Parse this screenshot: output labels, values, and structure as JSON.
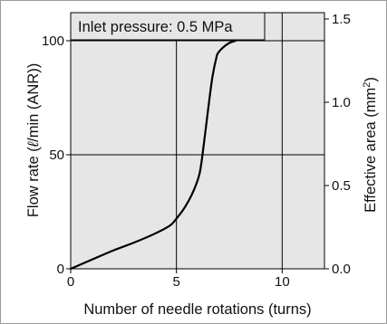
{
  "chart_data": {
    "type": "line",
    "annotation": "Inlet pressure: 0.5 MPa",
    "xlabel": "Number of needle rotations (turns)",
    "ylabel_left_prefix": "Flow rate (",
    "ylabel_left_unit_symbol": "ℓ",
    "ylabel_left_suffix": "/min (ANR))",
    "ylabel_right_prefix": "Effective area (mm",
    "ylabel_right_sup": "2",
    "ylabel_right_suffix": ")",
    "xlim": [
      0,
      12
    ],
    "ylim_left": [
      0,
      100
    ],
    "ylim_right": [
      0,
      1.5
    ],
    "x_ticks": [
      0,
      5,
      10
    ],
    "x_tick_labels": [
      "0",
      "5",
      "10"
    ],
    "y_left_ticks": [
      0,
      50,
      100
    ],
    "y_left_tick_labels": [
      "0",
      "50",
      "100"
    ],
    "y_right_ticks": [
      0,
      0.5,
      1.0,
      1.5
    ],
    "y_right_tick_labels": [
      "0.0",
      "0.5",
      "1.0",
      "1.5"
    ],
    "grid": true,
    "background": "#e6e6e6",
    "line_color": "#000000",
    "series": [
      {
        "x": [
          0,
          1.0,
          2.0,
          3.0,
          4.0,
          4.7,
          5.0,
          5.4,
          5.8,
          6.1,
          6.3,
          6.5,
          6.7,
          6.9,
          7.0,
          7.2,
          7.5,
          7.8
        ],
        "y": [
          0,
          4,
          8,
          11.5,
          15.5,
          19,
          22,
          27,
          34,
          42,
          55,
          70,
          84,
          93,
          95,
          97,
          99,
          100
        ]
      }
    ]
  }
}
